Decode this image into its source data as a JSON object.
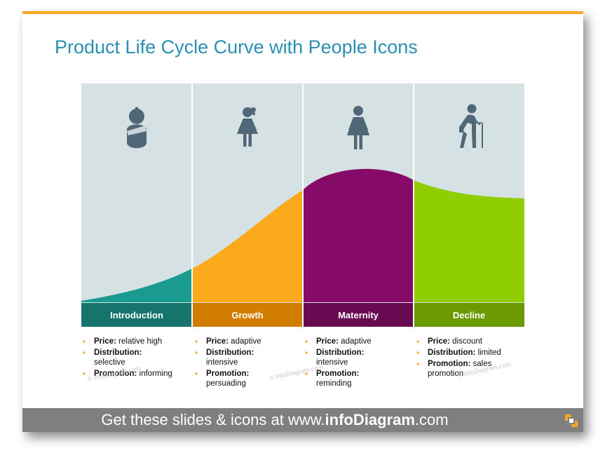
{
  "title": "Product Life Cycle Curve with People Icons",
  "colors": {
    "accent": "#f5a623",
    "panel_bg": "#d6e1e4",
    "icon": "#4f6777",
    "intro": "#1a9b90",
    "intro_label": "#16746c",
    "growth": "#fca91c",
    "growth_label": "#d07d00",
    "maturity": "#860b69",
    "maturity_label": "#680a51",
    "decline": "#8fce00",
    "decline_label": "#6a9a00",
    "footer_bg": "#7f7f7f"
  },
  "stages": [
    {
      "label": "Introduction",
      "icon": "baby-icon",
      "bullets": [
        {
          "key": "Price:",
          "value": "relative high"
        },
        {
          "key": "Distribution:",
          "value": "selective"
        },
        {
          "key": "Promotion:",
          "value": "informing"
        }
      ]
    },
    {
      "label": "Growth",
      "icon": "girl-icon",
      "bullets": [
        {
          "key": "Price:",
          "value": "adaptive"
        },
        {
          "key": "Distribution:",
          "value": "intensive"
        },
        {
          "key": "Promotion:",
          "value": "persuading"
        }
      ]
    },
    {
      "label": "Maternity",
      "icon": "woman-icon",
      "bullets": [
        {
          "key": "Price:",
          "value": "adaptive"
        },
        {
          "key": "Distribution:",
          "value": "intensive"
        },
        {
          "key": "Promotion:",
          "value": "reminding"
        }
      ]
    },
    {
      "label": "Decline",
      "icon": "elderly-person-icon",
      "bullets": [
        {
          "key": "Price:",
          "value": "discount"
        },
        {
          "key": "Distribution:",
          "value": "limited"
        },
        {
          "key": "Promotion:",
          "value": "sales promotion"
        }
      ]
    }
  ],
  "watermark": "© infoDiagram.com",
  "footer": {
    "prefix": "Get these slides & icons at www.",
    "brand": "infoDiagram",
    "suffix": ".com"
  }
}
